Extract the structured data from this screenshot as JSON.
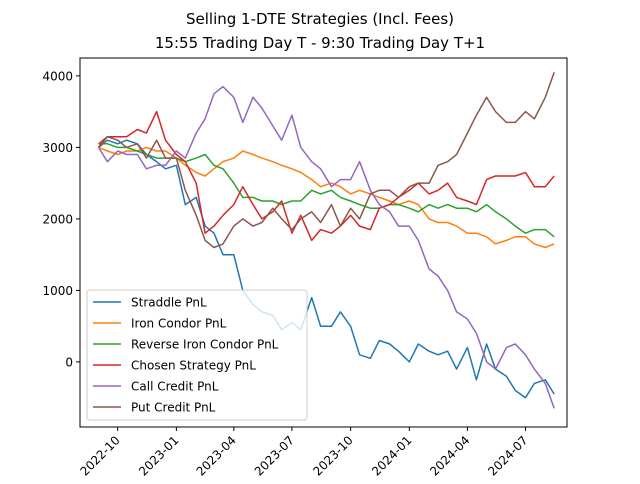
{
  "chart_data": {
    "type": "line",
    "title": "Selling 1-DTE Strategies (Incl. Fees)",
    "subtitle": "15:55 Trading Day T - 9:30 Trading Day T+1",
    "xlabel": "",
    "ylabel": "",
    "xlim": [
      "2022-08-03",
      "2024-09-04"
    ],
    "ylim": [
      -910,
      4250
    ],
    "grid": false,
    "legend_position": "lower-left",
    "yticks": [
      0,
      1000,
      2000,
      3000,
      4000
    ],
    "xticks": [
      "2022-10",
      "2023-01",
      "2023-04",
      "2023-07",
      "2023-10",
      "2024-01",
      "2024-04",
      "2024-07"
    ],
    "x": [
      "2022-09-01",
      "2022-09-15",
      "2022-10-01",
      "2022-10-15",
      "2022-11-01",
      "2022-11-15",
      "2022-12-01",
      "2022-12-15",
      "2023-01-01",
      "2023-01-15",
      "2023-02-01",
      "2023-02-15",
      "2023-03-01",
      "2023-03-15",
      "2023-04-01",
      "2023-04-15",
      "2023-05-01",
      "2023-05-15",
      "2023-06-01",
      "2023-06-15",
      "2023-07-01",
      "2023-07-15",
      "2023-08-01",
      "2023-08-15",
      "2023-09-01",
      "2023-09-15",
      "2023-10-01",
      "2023-10-15",
      "2023-11-01",
      "2023-11-15",
      "2023-12-01",
      "2023-12-15",
      "2024-01-01",
      "2024-01-15",
      "2024-02-01",
      "2024-02-15",
      "2024-03-01",
      "2024-03-15",
      "2024-04-01",
      "2024-04-15",
      "2024-05-01",
      "2024-05-15",
      "2024-06-01",
      "2024-06-15",
      "2024-07-01",
      "2024-07-15",
      "2024-08-01",
      "2024-08-15"
    ],
    "series": [
      {
        "name": "Straddle PnL",
        "color": "#1f77b4",
        "values": [
          3000,
          3100,
          3050,
          3100,
          3050,
          2900,
          2800,
          2700,
          2750,
          2200,
          2300,
          1900,
          1800,
          1500,
          1500,
          1000,
          800,
          700,
          650,
          450,
          550,
          450,
          900,
          500,
          500,
          700,
          500,
          100,
          50,
          300,
          250,
          150,
          0,
          250,
          150,
          100,
          150,
          -100,
          200,
          -250,
          250,
          -100,
          -200,
          -400,
          -500,
          -300,
          -250,
          -450
        ]
      },
      {
        "name": "Iron Condor PnL",
        "color": "#ff7f0e",
        "values": [
          3000,
          2950,
          2900,
          2950,
          2950,
          3000,
          2950,
          2950,
          2850,
          2750,
          2650,
          2600,
          2700,
          2800,
          2850,
          2950,
          2900,
          2850,
          2800,
          2750,
          2700,
          2650,
          2550,
          2450,
          2500,
          2450,
          2350,
          2400,
          2350,
          2300,
          2250,
          2200,
          2250,
          2200,
          2000,
          1950,
          1950,
          1900,
          1800,
          1800,
          1750,
          1650,
          1700,
          1750,
          1750,
          1650,
          1600,
          1650
        ]
      },
      {
        "name": "Reverse Iron Condor PnL",
        "color": "#2ca02c",
        "values": [
          3050,
          3050,
          3000,
          3000,
          2950,
          2900,
          2850,
          2850,
          2850,
          2800,
          2850,
          2900,
          2750,
          2700,
          2500,
          2300,
          2300,
          2250,
          2250,
          2200,
          2250,
          2250,
          2400,
          2350,
          2400,
          2300,
          2250,
          2200,
          2150,
          2150,
          2200,
          2200,
          2150,
          2100,
          2200,
          2150,
          2200,
          2150,
          2150,
          2100,
          2200,
          2100,
          2000,
          1900,
          1800,
          1850,
          1850,
          1750
        ]
      },
      {
        "name": "Chosen Strategy PnL",
        "color": "#d62728",
        "values": [
          3000,
          3150,
          3150,
          3150,
          3250,
          3200,
          3500,
          3100,
          2900,
          2800,
          2500,
          1800,
          1900,
          2050,
          2200,
          2450,
          2200,
          2000,
          2100,
          2250,
          1800,
          2050,
          1700,
          1850,
          1800,
          1900,
          2050,
          1900,
          1850,
          2150,
          2200,
          2300,
          2400,
          2500,
          2350,
          2400,
          2500,
          2300,
          2250,
          2200,
          2550,
          2600,
          2600,
          2600,
          2650,
          2450,
          2450,
          2600
        ]
      },
      {
        "name": "Call Credit PnL",
        "color": "#9467bd",
        "values": [
          3000,
          2800,
          2950,
          2900,
          2900,
          2700,
          2750,
          2750,
          2950,
          2850,
          3200,
          3400,
          3750,
          3850,
          3700,
          3350,
          3700,
          3550,
          3300,
          3100,
          3450,
          3000,
          2800,
          2700,
          2450,
          2550,
          2550,
          2800,
          2400,
          2200,
          2100,
          1900,
          1900,
          1700,
          1300,
          1200,
          1000,
          700,
          600,
          400,
          0,
          -100,
          200,
          250,
          100,
          -100,
          -300,
          -650
        ]
      },
      {
        "name": "Put Credit PnL",
        "color": "#8c564b",
        "values": [
          3050,
          3150,
          3100,
          3000,
          3050,
          2850,
          3100,
          2850,
          2850,
          2400,
          2050,
          1700,
          1600,
          1650,
          1900,
          2000,
          1900,
          1950,
          2150,
          2000,
          1850,
          2000,
          2100,
          1950,
          2200,
          1900,
          2150,
          2000,
          2350,
          2400,
          2400,
          2300,
          2450,
          2500,
          2500,
          2750,
          2800,
          2900,
          3200,
          3450,
          3700,
          3500,
          3350,
          3350,
          3500,
          3400,
          3700,
          4050
        ]
      }
    ]
  }
}
